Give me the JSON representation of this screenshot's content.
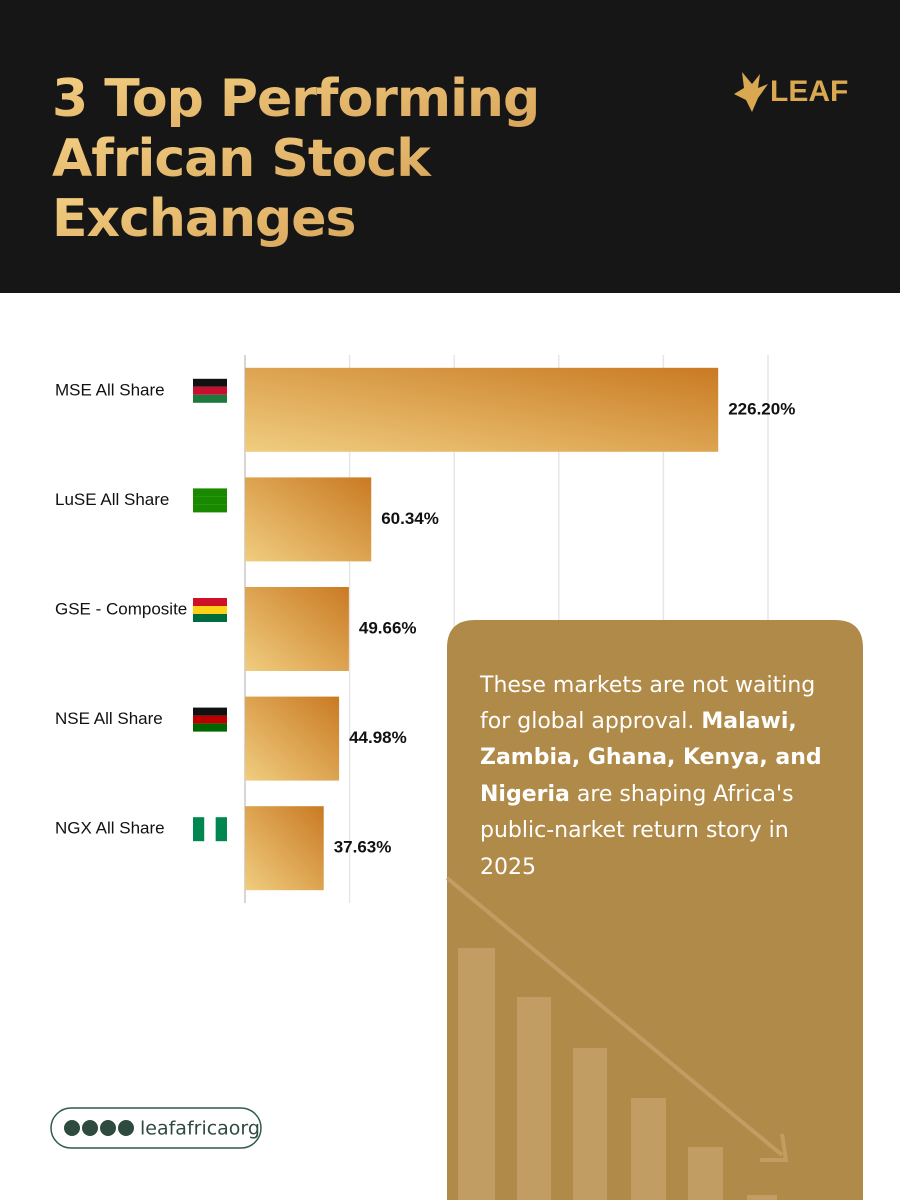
{
  "header": {
    "title": [
      "3 Top Performing",
      "African Stock",
      "Exchanges"
    ],
    "logo": "LEAF"
  },
  "chart_data": {
    "type": "bar",
    "orientation": "horizontal",
    "categories": [
      "MSE All Share",
      "LuSE All Share",
      "GSE - Composite",
      "NSE All Share",
      "NGX All Share"
    ],
    "values": [
      226.2,
      60.34,
      49.66,
      44.98,
      37.63
    ],
    "value_labels": [
      "226.20%",
      "60.34%",
      "49.66%",
      "44.98%",
      "37.63%"
    ],
    "colors": [
      "#f0cd80",
      "#c97a22"
    ],
    "xlim": [
      0,
      250
    ],
    "xticks": [
      0,
      50,
      100,
      150,
      200,
      250
    ],
    "grid": true
  },
  "callout": [
    [
      "These markets are not waiting"
    ],
    [
      "for global approval. ",
      "Malawi,"
    ],
    [
      "Zambia, Ghana, Kenya, and"
    ],
    [
      "Nigeria",
      " are shaping Africa's"
    ],
    [
      "public-narket return story in"
    ],
    [
      "2025"
    ]
  ],
  "footer": {
    "handle": "leafafricaorg"
  }
}
